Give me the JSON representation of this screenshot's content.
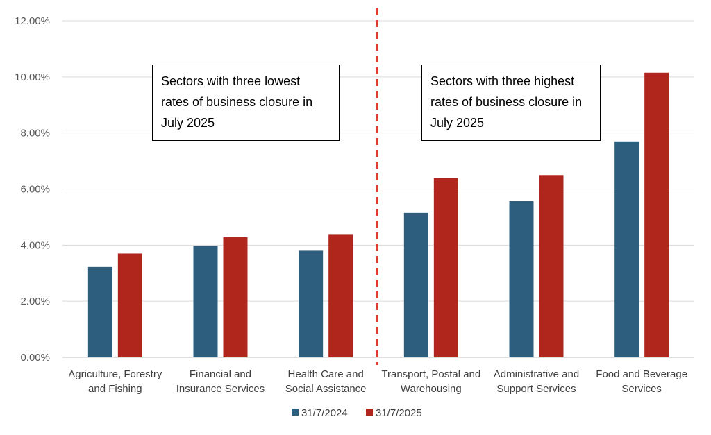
{
  "chart_data": {
    "type": "bar",
    "categories": [
      [
        "Agriculture, Forestry",
        "and Fishing"
      ],
      [
        "Financial and",
        "Insurance Services"
      ],
      [
        "Health Care and",
        "Social Assistance"
      ],
      [
        "Transport, Postal and",
        "Warehousing"
      ],
      [
        "Administrative and",
        "Support Services"
      ],
      [
        "Food and Beverage",
        "Services"
      ]
    ],
    "series": [
      {
        "name": "31/7/2024",
        "color": "#2e5e7e",
        "values": [
          3.22,
          3.97,
          3.8,
          5.15,
          5.57,
          7.7
        ]
      },
      {
        "name": "31/7/2025",
        "color": "#b0261c",
        "values": [
          3.7,
          4.28,
          4.37,
          6.4,
          6.5,
          10.15
        ]
      }
    ],
    "ylim": [
      0,
      12
    ],
    "ytick_step": 2,
    "ytick_format": "percent_2dp",
    "yticks": [
      "0.00%",
      "2.00%",
      "4.00%",
      "6.00%",
      "8.00%",
      "10.00%",
      "12.00%"
    ],
    "grid": true,
    "legend_position": "bottom",
    "divider": {
      "style": "dashed",
      "color": "#e03c31",
      "between_categories": [
        2,
        3
      ]
    },
    "annotations": [
      {
        "lines": [
          "Sectors with three lowest",
          "rates of business closure in",
          "July 2025"
        ]
      },
      {
        "lines": [
          "Sectors with three highest",
          "rates of business closure in",
          "July 2025"
        ]
      }
    ]
  }
}
